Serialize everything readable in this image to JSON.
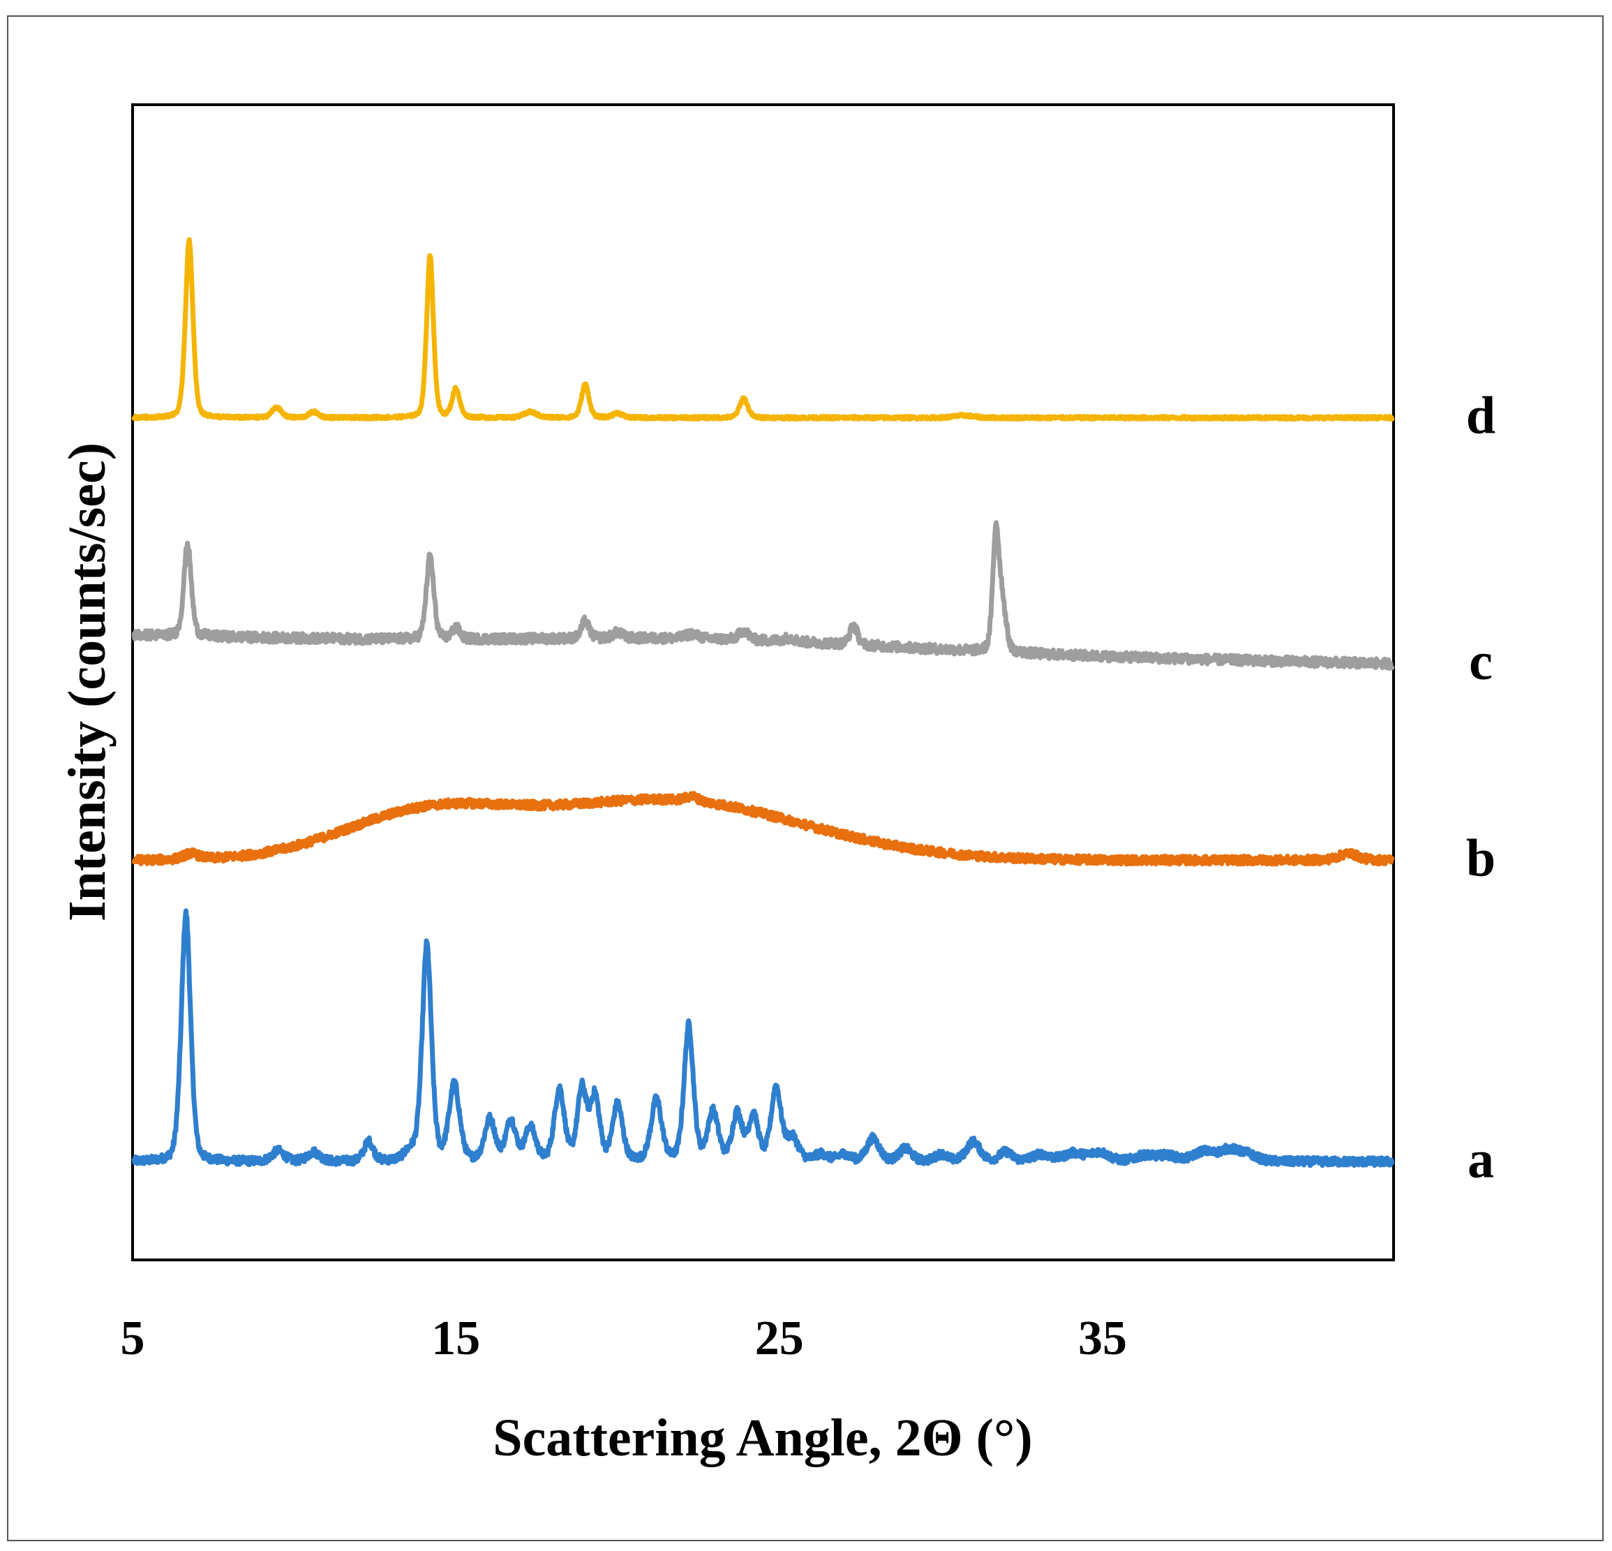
{
  "chart_data": {
    "type": "line",
    "title": "",
    "xlabel": "Scattering Angle, 2Θ (°)",
    "ylabel": "Intensity (counts/sec)",
    "xlim": [
      5,
      44
    ],
    "ylim": [
      0,
      100
    ],
    "xticks": [
      5,
      15,
      25,
      35
    ],
    "grid": false,
    "legend": "labels at right end of each trace",
    "series": [
      {
        "name": "a",
        "color": "#2f7fcf",
        "baseline": 8.5,
        "noise": 0.35,
        "peaks": [
          [
            6.65,
            21.5,
            0.15
          ],
          [
            9.5,
            0.9,
            0.2
          ],
          [
            10.6,
            0.8,
            0.2
          ],
          [
            12.3,
            1.7,
            0.15
          ],
          [
            13.6,
            0.8,
            0.2
          ],
          [
            14.1,
            18.7,
            0.15
          ],
          [
            14.95,
            6.6,
            0.17
          ],
          [
            16.05,
            3.6,
            0.17
          ],
          [
            16.7,
            3.5,
            0.16
          ],
          [
            17.3,
            2.9,
            0.17
          ],
          [
            18.2,
            6.2,
            0.16
          ],
          [
            18.9,
            6.2,
            0.15
          ],
          [
            19.3,
            5.5,
            0.15
          ],
          [
            20.0,
            4.9,
            0.16
          ],
          [
            21.2,
            5.3,
            0.17
          ],
          [
            22.2,
            11.7,
            0.15
          ],
          [
            22.95,
            4.2,
            0.17
          ],
          [
            23.7,
            4.1,
            0.16
          ],
          [
            24.2,
            3.9,
            0.16
          ],
          [
            24.9,
            6.3,
            0.16
          ],
          [
            25.4,
            2.0,
            0.2
          ],
          [
            26.3,
            0.6,
            0.2
          ],
          [
            27.0,
            0.6,
            0.2
          ],
          [
            27.9,
            2.0,
            0.2
          ],
          [
            28.9,
            1.1,
            0.2
          ],
          [
            30.0,
            0.6,
            0.2
          ],
          [
            31.0,
            1.7,
            0.22
          ],
          [
            32.0,
            0.8,
            0.2
          ],
          [
            33.1,
            0.6,
            0.3
          ],
          [
            34.1,
            0.7,
            0.3
          ],
          [
            34.9,
            0.8,
            0.3
          ],
          [
            36.3,
            0.5,
            0.3
          ],
          [
            37.0,
            0.5,
            0.3
          ],
          [
            38.1,
            0.8,
            0.3
          ],
          [
            38.9,
            1.0,
            0.35
          ],
          [
            39.5,
            0.5,
            0.3
          ]
        ]
      },
      {
        "name": "b",
        "color": "#e8700e",
        "baseline": 34.6,
        "noise": 0.35,
        "humps": [
          [
            14.0,
            3.6,
            2.6
          ],
          [
            21.5,
            5.2,
            4.2
          ]
        ],
        "peaks": [
          [
            6.8,
            0.5,
            0.25
          ],
          [
            22.3,
            0.4,
            0.2
          ],
          [
            42.6,
            0.6,
            0.3
          ]
        ]
      },
      {
        "name": "c",
        "color": "#9e9e9e",
        "baseline": 53.2,
        "slope_start": 0.9,
        "slope_end": -1.6,
        "noise": 0.4,
        "humps": [
          [
            23.0,
            0.8,
            5.5
          ]
        ],
        "peaks": [
          [
            6.7,
            8.0,
            0.12
          ],
          [
            14.2,
            7.2,
            0.12
          ],
          [
            15.0,
            1.0,
            0.12
          ],
          [
            19.0,
            1.5,
            0.12
          ],
          [
            20.0,
            0.5,
            0.15
          ],
          [
            22.3,
            0.4,
            0.2
          ],
          [
            23.9,
            0.8,
            0.15
          ],
          [
            25.3,
            0.3,
            0.2
          ],
          [
            27.3,
            1.7,
            0.12
          ],
          [
            31.7,
            10.2,
            0.1
          ],
          [
            31.9,
            4.0,
            0.12
          ]
        ]
      },
      {
        "name": "d",
        "color": "#f5b400",
        "baseline": 72.9,
        "noise": 0.12,
        "peaks": [
          [
            6.75,
            15.4,
            0.12
          ],
          [
            9.45,
            0.9,
            0.15
          ],
          [
            10.6,
            0.5,
            0.15
          ],
          [
            14.2,
            14.0,
            0.11
          ],
          [
            15.0,
            2.5,
            0.12
          ],
          [
            17.3,
            0.5,
            0.2
          ],
          [
            19.0,
            2.9,
            0.12
          ],
          [
            20.0,
            0.4,
            0.15
          ],
          [
            23.9,
            1.7,
            0.13
          ],
          [
            30.7,
            0.2,
            0.3
          ]
        ]
      }
    ]
  }
}
